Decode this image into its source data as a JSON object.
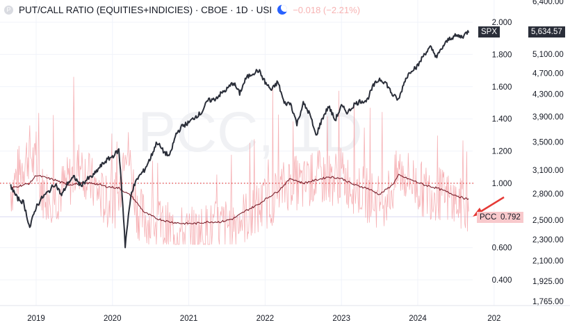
{
  "header": {
    "symbol_logo": "P",
    "title": "PUT/CALL RATIO (EQUITIES+INDICIES) · CBOE · 1D · USI",
    "change": "−0.018 (−2.21%)",
    "market_status_icon": "moon-icon"
  },
  "watermark": "PCC, 1D",
  "chart_data": {
    "type": "line",
    "title": "PUT/CALL RATIO (EQUITIES+INDICIES) · CBOE · 1D · USI",
    "x_ticks": [
      "2019",
      "2020",
      "2021",
      "2022",
      "2023",
      "2024",
      "202"
    ],
    "left_axis": {
      "ticks": [
        "2.000",
        "1.800",
        "1.600",
        "1.400",
        "1.200",
        "1.000",
        "0.600",
        "0.400"
      ],
      "range": [
        0.26,
        2.08
      ]
    },
    "right_axis": {
      "ticks": [
        "6,400.00",
        "5,100.00",
        "4,700.00",
        "4,300.00",
        "3,900.00",
        "3,500.00",
        "3,100.00",
        "2,800.00",
        "2,500.00",
        "2,300.00",
        "2,100.00",
        "1,925.00",
        "1,765.00"
      ],
      "scale": "log",
      "range": [
        1650,
        6400
      ]
    },
    "reference_line": {
      "value": 1.0,
      "style": "dotted",
      "color": "#e53935"
    },
    "series": [
      {
        "name": "SPX",
        "color": "#2a2e39",
        "last_value": "5,634.57",
        "points": [
          [
            "2018-09",
            2900
          ],
          [
            "2018-10",
            2750
          ],
          [
            "2018-11",
            2700
          ],
          [
            "2018-12",
            2420
          ],
          [
            "2019-01",
            2650
          ],
          [
            "2019-02",
            2760
          ],
          [
            "2019-03",
            2830
          ],
          [
            "2019-04",
            2930
          ],
          [
            "2019-05",
            2780
          ],
          [
            "2019-06",
            2940
          ],
          [
            "2019-07",
            3010
          ],
          [
            "2019-08",
            2900
          ],
          [
            "2019-09",
            2980
          ],
          [
            "2019-10",
            3030
          ],
          [
            "2019-11",
            3140
          ],
          [
            "2019-12",
            3230
          ],
          [
            "2020-01",
            3290
          ],
          [
            "2020-02",
            3380
          ],
          [
            "2020-03",
            2240
          ],
          [
            "2020-04",
            2830
          ],
          [
            "2020-05",
            3000
          ],
          [
            "2020-06",
            3100
          ],
          [
            "2020-07",
            3270
          ],
          [
            "2020-08",
            3500
          ],
          [
            "2020-09",
            3360
          ],
          [
            "2020-10",
            3290
          ],
          [
            "2020-11",
            3620
          ],
          [
            "2020-12",
            3750
          ],
          [
            "2021-01",
            3800
          ],
          [
            "2021-02",
            3900
          ],
          [
            "2021-03",
            3970
          ],
          [
            "2021-04",
            4180
          ],
          [
            "2021-05",
            4200
          ],
          [
            "2021-06",
            4300
          ],
          [
            "2021-07",
            4390
          ],
          [
            "2021-08",
            4520
          ],
          [
            "2021-09",
            4310
          ],
          [
            "2021-10",
            4600
          ],
          [
            "2021-11",
            4700
          ],
          [
            "2021-12",
            4760
          ],
          [
            "2022-01",
            4520
          ],
          [
            "2022-02",
            4370
          ],
          [
            "2022-03",
            4530
          ],
          [
            "2022-04",
            4130
          ],
          [
            "2022-05",
            4130
          ],
          [
            "2022-06",
            3780
          ],
          [
            "2022-07",
            4130
          ],
          [
            "2022-08",
            3950
          ],
          [
            "2022-09",
            3590
          ],
          [
            "2022-10",
            3870
          ],
          [
            "2022-11",
            4080
          ],
          [
            "2022-12",
            3840
          ],
          [
            "2023-01",
            4080
          ],
          [
            "2023-02",
            3970
          ],
          [
            "2023-03",
            4110
          ],
          [
            "2023-04",
            4170
          ],
          [
            "2023-05",
            4180
          ],
          [
            "2023-06",
            4450
          ],
          [
            "2023-07",
            4590
          ],
          [
            "2023-08",
            4510
          ],
          [
            "2023-09",
            4290
          ],
          [
            "2023-10",
            4190
          ],
          [
            "2023-11",
            4570
          ],
          [
            "2023-12",
            4770
          ],
          [
            "2024-01",
            4850
          ],
          [
            "2024-02",
            5100
          ],
          [
            "2024-03",
            5250
          ],
          [
            "2024-04",
            5040
          ],
          [
            "2024-05",
            5280
          ],
          [
            "2024-06",
            5460
          ],
          [
            "2024-07",
            5520
          ],
          [
            "2024-08",
            5500
          ],
          [
            "2024-09",
            5634.57
          ]
        ]
      },
      {
        "name": "PCC",
        "color": "#f5a3a8",
        "last_value": "0.792",
        "points": [
          [
            "2018-09",
            0.95
          ],
          [
            "2018-10",
            1.05
          ],
          [
            "2018-12",
            1.2
          ],
          [
            "2019-02",
            0.95
          ],
          [
            "2019-04",
            0.92
          ],
          [
            "2019-06",
            1.0
          ],
          [
            "2019-08",
            1.12
          ],
          [
            "2019-10",
            0.98
          ],
          [
            "2019-12",
            0.88
          ],
          [
            "2020-02",
            0.9
          ],
          [
            "2020-03",
            1.3
          ],
          [
            "2020-05",
            0.82
          ],
          [
            "2020-07",
            0.75
          ],
          [
            "2020-09",
            0.72
          ],
          [
            "2020-11",
            0.7
          ],
          [
            "2021-01",
            0.68
          ],
          [
            "2021-03",
            0.7
          ],
          [
            "2021-05",
            0.72
          ],
          [
            "2021-07",
            0.74
          ],
          [
            "2021-09",
            0.78
          ],
          [
            "2021-11",
            0.8
          ],
          [
            "2022-01",
            0.88
          ],
          [
            "2022-03",
            0.93
          ],
          [
            "2022-05",
            1.02
          ],
          [
            "2022-07",
            0.98
          ],
          [
            "2022-09",
            1.04
          ],
          [
            "2022-11",
            1.02
          ],
          [
            "2023-01",
            1.05
          ],
          [
            "2023-03",
            0.98
          ],
          [
            "2023-05",
            0.93
          ],
          [
            "2023-07",
            0.88
          ],
          [
            "2023-09",
            0.96
          ],
          [
            "2023-10",
            1.08
          ],
          [
            "2023-12",
            1.02
          ],
          [
            "2024-02",
            0.95
          ],
          [
            "2024-04",
            0.94
          ],
          [
            "2024-06",
            0.9
          ],
          [
            "2024-08",
            0.86
          ],
          [
            "2024-09",
            0.792
          ]
        ]
      },
      {
        "name": "PCC moving average",
        "color": "#7b1f2b",
        "points": [
          [
            "2018-09",
            0.97
          ],
          [
            "2018-12",
            1.0
          ],
          [
            "2019-01",
            1.05
          ],
          [
            "2019-04",
            1.02
          ],
          [
            "2019-06",
            0.99
          ],
          [
            "2019-08",
            1.0
          ],
          [
            "2019-10",
            1.0
          ],
          [
            "2019-12",
            0.98
          ],
          [
            "2020-02",
            0.97
          ],
          [
            "2020-04",
            0.92
          ],
          [
            "2020-06",
            0.82
          ],
          [
            "2020-08",
            0.78
          ],
          [
            "2020-10",
            0.76
          ],
          [
            "2020-12",
            0.75
          ],
          [
            "2021-02",
            0.75
          ],
          [
            "2021-04",
            0.76
          ],
          [
            "2021-06",
            0.76
          ],
          [
            "2021-08",
            0.78
          ],
          [
            "2021-10",
            0.83
          ],
          [
            "2021-12",
            0.87
          ],
          [
            "2022-01",
            0.9
          ],
          [
            "2022-03",
            0.95
          ],
          [
            "2022-05",
            1.03
          ],
          [
            "2022-07",
            1.0
          ],
          [
            "2022-09",
            1.02
          ],
          [
            "2022-11",
            1.04
          ],
          [
            "2023-01",
            1.03
          ],
          [
            "2023-03",
            0.99
          ],
          [
            "2023-05",
            0.97
          ],
          [
            "2023-07",
            0.93
          ],
          [
            "2023-09",
            0.99
          ],
          [
            "2023-10",
            1.05
          ],
          [
            "2023-12",
            1.02
          ],
          [
            "2024-02",
            0.99
          ],
          [
            "2024-04",
            0.97
          ],
          [
            "2024-06",
            0.94
          ],
          [
            "2024-08",
            0.91
          ],
          [
            "2024-09",
            0.9
          ]
        ]
      }
    ],
    "annotations": [
      {
        "type": "arrow",
        "color": "#e53935",
        "points_to": "PCC last value"
      }
    ]
  },
  "colors": {
    "spx_line": "#2a2e39",
    "pcc_spikes": "#f5a3a8",
    "pcc_ma": "#7b1f2b",
    "reference": "#e53935",
    "pcc_badge": "#f8c9cc",
    "spx_badge": "#2a2e39"
  }
}
